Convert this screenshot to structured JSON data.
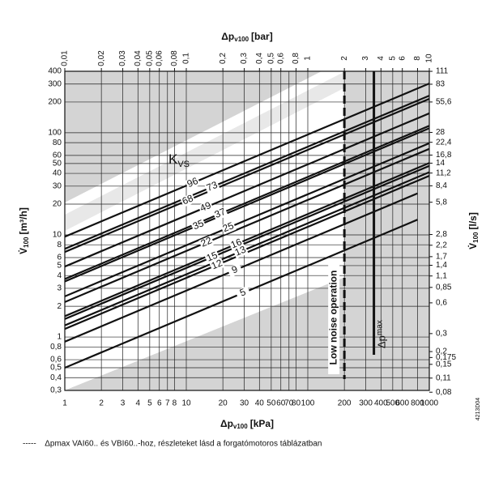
{
  "chart_data": {
    "type": "line",
    "x_title": {
      "main": "Δp",
      "sub": "v100",
      "unit": "[kPa]"
    },
    "x2_title": {
      "main": "Δp",
      "sub": "v100",
      "unit": "[bar]"
    },
    "y_title": {
      "main": "V̇",
      "sub": "100",
      "unit": "[m³/h]"
    },
    "y2_title": {
      "main": "V̇",
      "sub": "100",
      "unit": "[l/s]"
    },
    "log_x": true,
    "log_y": true,
    "grid": true,
    "xlim": [
      1,
      1000
    ],
    "xticks": [
      1,
      2,
      3,
      4,
      5,
      6,
      7,
      8,
      10,
      20,
      30,
      40,
      50,
      60,
      70,
      80,
      100,
      200,
      300,
      400,
      500,
      600,
      800,
      1000
    ],
    "x2lim": [
      0.01,
      10
    ],
    "x2ticks": [
      {
        "value": 0.01,
        "label": "0,01"
      },
      {
        "value": 0.02,
        "label": "0,02"
      },
      {
        "value": 0.03,
        "label": "0,03"
      },
      {
        "value": 0.04,
        "label": "0,04"
      },
      {
        "value": 0.05,
        "label": "0,05"
      },
      {
        "value": 0.06,
        "label": "0,06"
      },
      {
        "value": 0.08,
        "label": "0,08"
      },
      {
        "value": 0.1,
        "label": "0,1"
      },
      {
        "value": 0.2,
        "label": "0,2"
      },
      {
        "value": 0.3,
        "label": "0,3"
      },
      {
        "value": 0.4,
        "label": "0,4"
      },
      {
        "value": 0.5,
        "label": "0,5"
      },
      {
        "value": 0.6,
        "label": "0,6"
      },
      {
        "value": 0.8,
        "label": "0,8"
      },
      1,
      2,
      3,
      4,
      5,
      6,
      8,
      10
    ],
    "ylim": [
      0.3,
      400
    ],
    "yticks": [
      {
        "value": 0.3,
        "label": "0,3"
      },
      {
        "value": 0.4,
        "label": "0,4"
      },
      {
        "value": 0.5,
        "label": "0,5"
      },
      {
        "value": 0.6,
        "label": "0,6"
      },
      {
        "value": 0.8,
        "label": "0,8"
      },
      1,
      2,
      3,
      4,
      5,
      6,
      8,
      10,
      20,
      30,
      40,
      50,
      60,
      80,
      100,
      200,
      300,
      400
    ],
    "y2lim": [
      0.0833,
      111.1
    ],
    "y2ticks": [
      {
        "value": 0.08,
        "label": "0,08"
      },
      {
        "value": 0.11,
        "label": "0,11"
      },
      {
        "value": 0.15,
        "label": "0,15"
      },
      {
        "value": 0.175,
        "label": "0,175"
      },
      {
        "value": 0.2,
        "label": "0,2"
      },
      {
        "value": 0.3,
        "label": "0,3"
      },
      {
        "value": 0.6,
        "label": "0,6"
      },
      {
        "value": 0.85,
        "label": "0,85"
      },
      {
        "value": 1.1,
        "label": "1,1"
      },
      {
        "value": 1.4,
        "label": "1,4"
      },
      {
        "value": 1.7,
        "label": "1,7"
      },
      {
        "value": 2.2,
        "label": "2,2"
      },
      {
        "value": 2.8,
        "label": "2,8"
      },
      {
        "value": 5.8,
        "label": "5,8"
      },
      {
        "value": 8.4,
        "label": "8,4"
      },
      {
        "value": 11.2,
        "label": "11,2"
      },
      14,
      {
        "value": 16.8,
        "label": "16,8"
      },
      {
        "value": 22.4,
        "label": "22,4"
      },
      28,
      {
        "value": 55.6,
        "label": "55,6"
      },
      83,
      111
    ],
    "kvs_label": {
      "main": "K",
      "sub": "VS"
    },
    "series": [
      {
        "name": "96",
        "x": [
          1,
          1000
        ],
        "values": [
          9.6,
          303.6
        ]
      },
      {
        "name": "73",
        "x": [
          1,
          1000
        ],
        "values": [
          7.3,
          230.8
        ]
      },
      {
        "name": "68",
        "x": [
          1,
          1000
        ],
        "values": [
          6.8,
          215
        ]
      },
      {
        "name": "49",
        "x": [
          1,
          1000
        ],
        "values": [
          4.9,
          155
        ]
      },
      {
        "name": "37",
        "x": [
          1,
          1000
        ],
        "values": [
          3.7,
          117
        ]
      },
      {
        "name": "35",
        "x": [
          1,
          1000
        ],
        "values": [
          3.5,
          110.7
        ]
      },
      {
        "name": "25",
        "x": [
          1,
          1000
        ],
        "values": [
          2.5,
          79
        ]
      },
      {
        "name": "22",
        "x": [
          1,
          1000
        ],
        "values": [
          2.2,
          69.6
        ]
      },
      {
        "name": "16",
        "x": [
          1,
          1000
        ],
        "values": [
          1.6,
          50.6
        ]
      },
      {
        "name": "15",
        "x": [
          1,
          1000
        ],
        "values": [
          1.5,
          47.4
        ]
      },
      {
        "name": "13",
        "x": [
          1,
          1000
        ],
        "values": [
          1.3,
          41.1
        ]
      },
      {
        "name": "12",
        "x": [
          1,
          1000
        ],
        "values": [
          1.2,
          37.9
        ]
      },
      {
        "name": "9",
        "x": [
          1,
          800
        ],
        "values": [
          0.9,
          25.5
        ]
      },
      {
        "name": "5",
        "x": [
          1,
          800
        ],
        "values": [
          0.5,
          14.1
        ]
      }
    ],
    "limits": [
      {
        "x": 200,
        "label": "Low noise operation",
        "style": "dashed"
      },
      {
        "x": 350,
        "label": {
          "main": "Δp",
          "sub": "max"
        },
        "style": "solid"
      }
    ],
    "footnote": "-----    Δpmax VAI60.. és VBI60..-hoz, részleteket lásd a forgatómotoros táblázatban",
    "code": "4213D04"
  }
}
